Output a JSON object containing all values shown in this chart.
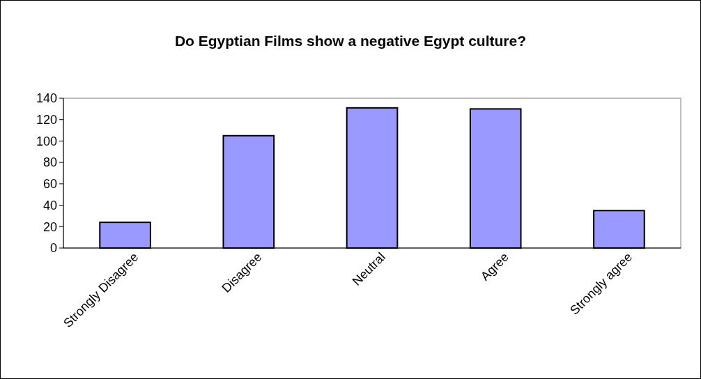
{
  "chart_data": {
    "type": "bar",
    "title": "Do Egyptian Films show a negative Egypt culture?",
    "categories": [
      "Strongly Disagree",
      "Disagree",
      "Neutral",
      "Agree",
      "Strongly agree"
    ],
    "values": [
      24,
      105,
      131,
      130,
      35
    ],
    "color": "#9999ff",
    "ylim": [
      0,
      140
    ],
    "yticks": [
      0,
      20,
      40,
      60,
      80,
      100,
      120,
      140
    ]
  }
}
